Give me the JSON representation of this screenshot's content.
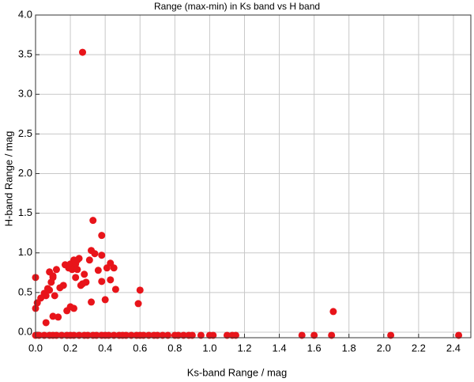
{
  "chart_data": {
    "type": "scatter",
    "title": "Range (max-min) in Ks band vs H band",
    "x_label": "Ks-band Range / mag",
    "y_label": "H-band Range / mag",
    "color": "#e8141a",
    "grid": true,
    "xlim": [
      0,
      2.5
    ],
    "ylim": [
      -0.07,
      4.0
    ],
    "xticks": [
      {
        "value": 0,
        "label": "0.0"
      },
      0.2,
      0.4,
      0.6,
      0.8,
      {
        "value": 1,
        "label": "1.0"
      },
      1.2,
      1.4,
      1.6,
      1.8,
      {
        "value": 2,
        "label": "2.0"
      },
      2.2,
      2.4
    ],
    "yticks": [
      {
        "value": 0,
        "label": "0.0"
      },
      0.5,
      {
        "value": 1,
        "label": "1.0"
      },
      1.5,
      {
        "value": 2,
        "label": "2.0"
      },
      2.5,
      {
        "value": 3,
        "label": "3.0"
      },
      3.5,
      {
        "value": 4,
        "label": "4.0"
      }
    ],
    "x": [
      0.27,
      0.33,
      0.38,
      0.32,
      0.34,
      0.38,
      0.31,
      0.43,
      0.41,
      0.45,
      0.36,
      0.43,
      0.38,
      0.46,
      0.4,
      0.6,
      0.59,
      0.32,
      1.71,
      0,
      0,
      0.01,
      0.03,
      0.05,
      0.06,
      0.07,
      0.08,
      0.09,
      0.1,
      0.08,
      0.1,
      0.11,
      0.12,
      0.14,
      0.16,
      0.17,
      0.19,
      0.2,
      0.21,
      0.23,
      0.24,
      0.25,
      0.23,
      0.26,
      0.24,
      0.2,
      0.22,
      0.18,
      0.1,
      0.13,
      0.06,
      0.27,
      0.28,
      0.29,
      0.22,
      0,
      0.02,
      0.05,
      0.08,
      0.1,
      0.12,
      0.15,
      0.18,
      0.2,
      0.22,
      0.25,
      0.28,
      0.3,
      0.33,
      0.35,
      0.38,
      0.4,
      0.42,
      0.45,
      0.48,
      0.5,
      0.52,
      0.55,
      0.58,
      0.6,
      0.62,
      0.65,
      0.68,
      0.7,
      0.73,
      0.76,
      0.8,
      0.82,
      0.85,
      0.88,
      0.9,
      0.95,
      1.0,
      1.02,
      1.1,
      1.13,
      1.15,
      1.53,
      1.6,
      1.7,
      2.04,
      2.43
    ],
    "y": [
      3.53,
      1.41,
      1.22,
      1.03,
      0.99,
      0.97,
      0.91,
      0.87,
      0.81,
      0.81,
      0.78,
      0.66,
      0.64,
      0.54,
      0.41,
      0.53,
      0.36,
      0.38,
      0.26,
      0.69,
      0.3,
      0.37,
      0.43,
      0.49,
      0.46,
      0.55,
      0.53,
      0.63,
      0.71,
      0.76,
      0.69,
      0.46,
      0.79,
      0.56,
      0.59,
      0.85,
      0.81,
      0.86,
      0.79,
      0.86,
      0.91,
      0.93,
      0.69,
      0.59,
      0.79,
      0.32,
      0.3,
      0.27,
      0.2,
      0.19,
      0.12,
      0.61,
      0.73,
      0.63,
      0.91,
      -0.04,
      -0.04,
      -0.04,
      -0.04,
      -0.04,
      -0.04,
      -0.04,
      -0.04,
      -0.04,
      -0.04,
      -0.04,
      -0.04,
      -0.04,
      -0.04,
      -0.04,
      -0.04,
      -0.04,
      -0.04,
      -0.04,
      -0.04,
      -0.04,
      -0.04,
      -0.04,
      -0.04,
      -0.04,
      -0.04,
      -0.04,
      -0.04,
      -0.04,
      -0.04,
      -0.04,
      -0.04,
      -0.04,
      -0.04,
      -0.04,
      -0.04,
      -0.04,
      -0.04,
      -0.04,
      -0.04,
      -0.04,
      -0.04,
      -0.04,
      -0.04,
      -0.04,
      -0.04,
      -0.04
    ]
  }
}
